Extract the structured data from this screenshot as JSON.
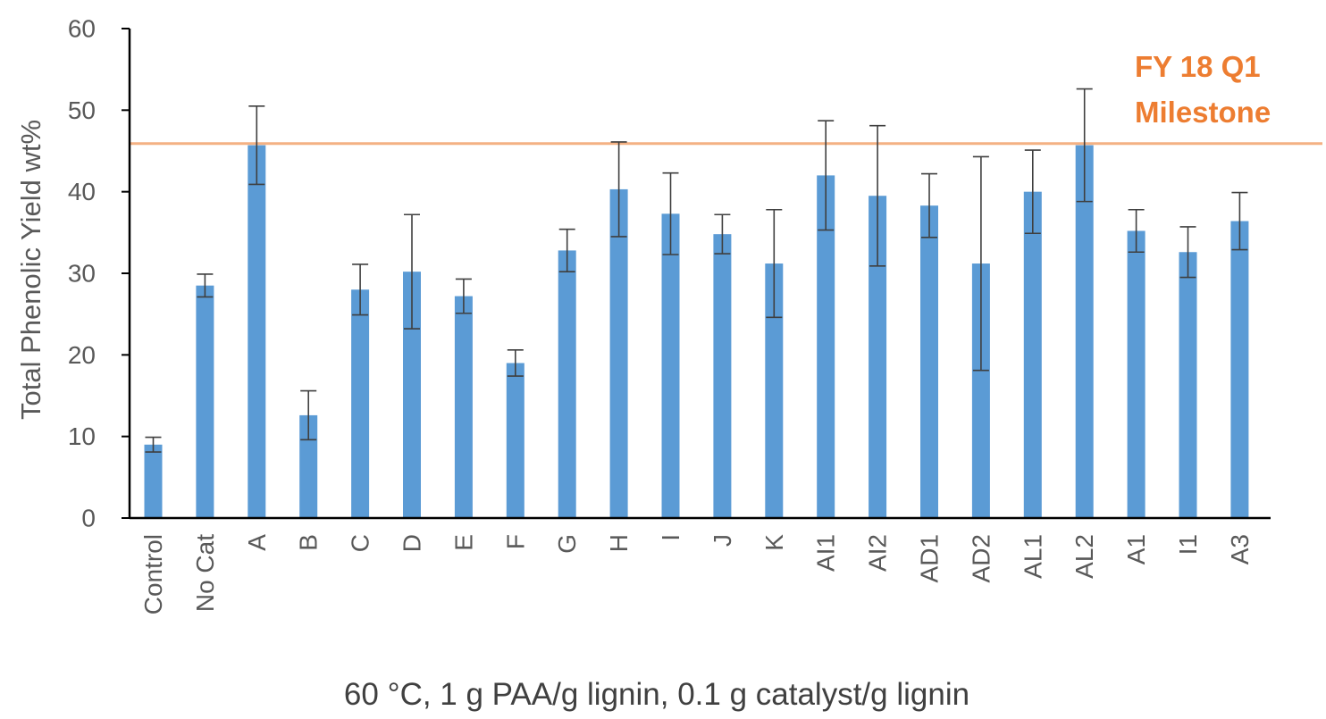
{
  "chart_data": {
    "type": "bar",
    "ylabel": "Total Phenolic Yield wt%",
    "xlabel": "60 °C, 1 g PAA/g lignin, 0.1 g catalyst/g lignin",
    "ylim": [
      0,
      60
    ],
    "yticks": [
      0,
      10,
      20,
      30,
      40,
      50,
      60
    ],
    "ytick_labels": [
      "0",
      "10",
      "20",
      "30",
      "40",
      "50",
      "60"
    ],
    "grid": false,
    "categories": [
      "Control",
      "No Cat",
      "A",
      "B",
      "C",
      "D",
      "E",
      "F",
      "G",
      "H",
      "I",
      "J",
      "K",
      "AI1",
      "AI2",
      "AD1",
      "AD2",
      "AL1",
      "AL2",
      "A1",
      "I1",
      "A3"
    ],
    "values": [
      9.0,
      28.5,
      45.7,
      12.6,
      28.0,
      30.2,
      27.2,
      19.0,
      32.8,
      40.3,
      37.3,
      34.8,
      31.2,
      42.0,
      39.5,
      38.3,
      31.2,
      40.0,
      45.7,
      35.2,
      32.6,
      36.4
    ],
    "errors": [
      0.9,
      1.4,
      4.8,
      3.0,
      3.1,
      7.0,
      2.1,
      1.6,
      2.6,
      5.8,
      5.0,
      2.4,
      6.6,
      6.7,
      8.6,
      3.9,
      13.1,
      5.1,
      6.9,
      2.6,
      3.1,
      3.5
    ],
    "bar_color": "#5b9bd5",
    "error_bar_color": "#3f3f3f",
    "reference_line": {
      "value": 45.9,
      "color": "#f4b183",
      "label_lines": [
        "FY 18 Q1",
        "Milestone"
      ],
      "label_color": "#ed7d31"
    }
  }
}
